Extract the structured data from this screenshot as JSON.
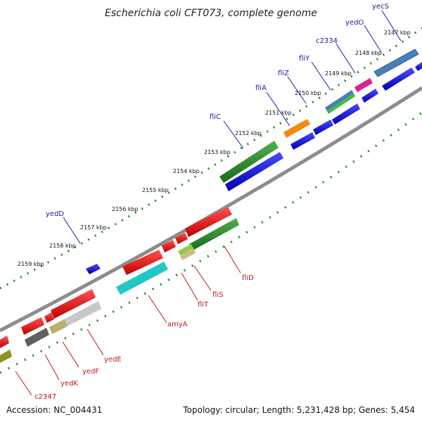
{
  "title": "Escherichia coli CFT073, complete genome",
  "footer": {
    "accession": "Accession: NC_004431",
    "topology": "Topology: circular; Length: 5,231,428 bp; Genes: 5,454"
  },
  "colors": {
    "backbone": "#8c8c8c",
    "tick_dots": "#1a8a1a",
    "label_blue": "#1a1aa0",
    "label_red": "#c41414"
  },
  "kbp_ticks": [
    "2147 kbp",
    "2148 kbp",
    "2149 kbp",
    "2150 kbp",
    "2151 kbp",
    "2152 kbp",
    "2153 kbp",
    "2154 kbp",
    "2155 kbp",
    "2156 kbp",
    "2157 kbp",
    "2158 kbp",
    "2159 kbp"
  ],
  "genes_top": [
    {
      "name": "yecS",
      "color": "#4a7fb5"
    },
    {
      "name": "yedO",
      "color": "#4a7fb5"
    },
    {
      "name": "c2334",
      "color": "#e0208c"
    },
    {
      "name": "fliY",
      "color": "#5a7fc0"
    },
    {
      "name": "fliZ",
      "color": "#f08c10"
    },
    {
      "name": "fliA",
      "color": "#1010e0"
    },
    {
      "name": "fliC",
      "color": "#208020"
    },
    {
      "name": "yedD",
      "color": "#1010e0"
    }
  ],
  "genes_bottom": [
    {
      "name": "fliD",
      "color": "#ee1010"
    },
    {
      "name": "fliS",
      "color": "#ee1010"
    },
    {
      "name": "fliT",
      "color": "#ee1010"
    },
    {
      "name": "amyA",
      "color": "#ee1010"
    },
    {
      "name": "yedE",
      "color": "#ee1010"
    },
    {
      "name": "yedF",
      "color": "#ee1010"
    },
    {
      "name": "yedK",
      "color": "#ee1010"
    },
    {
      "name": "c2347",
      "color": "#ee1010"
    }
  ]
}
